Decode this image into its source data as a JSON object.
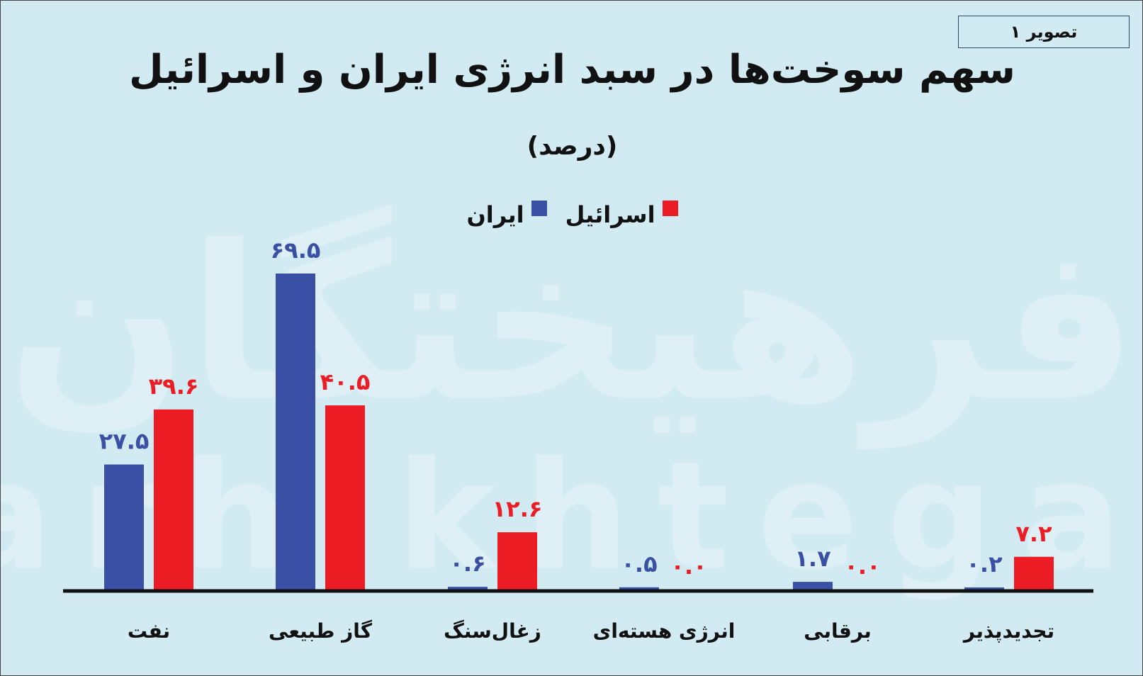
{
  "figure_label": "تصویر ۱",
  "watermark": {
    "fa": "فرهیختگان",
    "en": "farhikhtegan"
  },
  "chart_data": {
    "type": "bar",
    "title": "سهم سوخت‌ها در سبد انرژی ایران و اسرائیل",
    "subtitle": "(درصد)",
    "categories": [
      "نفت",
      "گاز طبیعی",
      "زغال‌سنگ",
      "انرژی هسته‌ای",
      "برقابی",
      "تجدیدپذیر"
    ],
    "series": [
      {
        "name": "ایران",
        "color": "#3a50a4",
        "values": [
          27.5,
          69.5,
          0.6,
          0.5,
          1.7,
          0.2
        ],
        "labels": [
          "۲۷.۵",
          "۶۹.۵",
          "۰.۶",
          "۰.۵",
          "۱.۷",
          "۰.۲"
        ]
      },
      {
        "name": "اسرائیل",
        "color": "#ec1c24",
        "values": [
          39.6,
          40.5,
          12.6,
          0.0,
          0.0,
          7.2
        ],
        "labels": [
          "۳۹.۶",
          "۴۰.۵",
          "۱۲.۶",
          "۰.۰",
          "۰.۰",
          "۷.۲"
        ]
      }
    ],
    "legend_position": "top-center",
    "grid": false,
    "ylim": [
      0,
      70
    ]
  }
}
